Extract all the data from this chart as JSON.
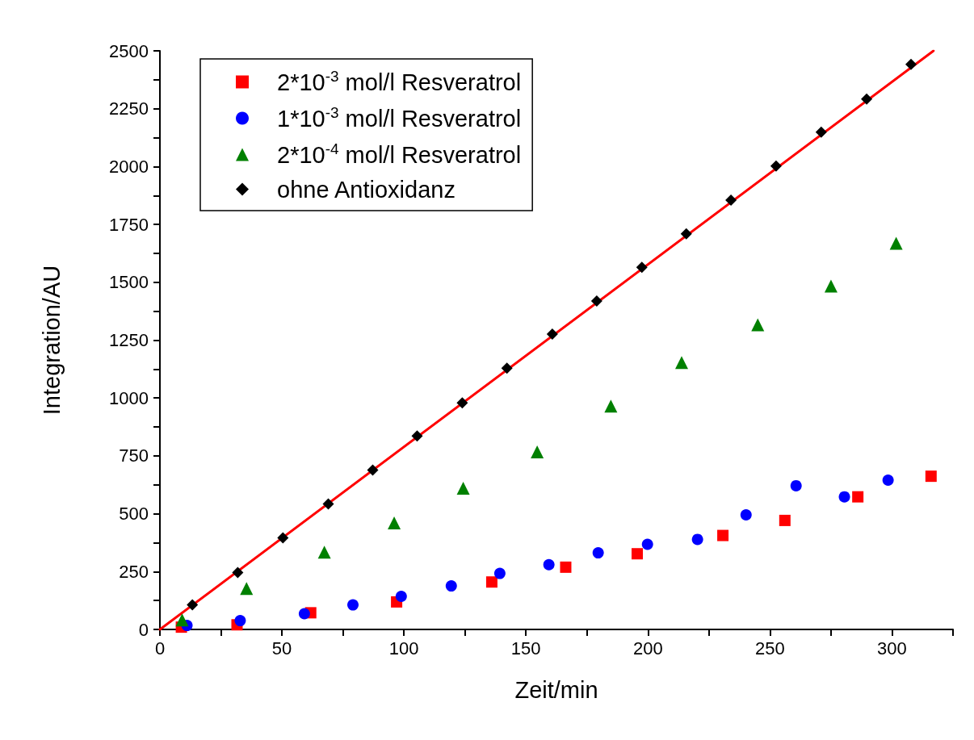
{
  "chart_data": {
    "type": "scatter",
    "xlabel": "Zeit/min",
    "ylabel": "Integration/AU",
    "xlim": [
      0,
      325
    ],
    "ylim": [
      0,
      2500
    ],
    "xticks": [
      0,
      {
        "value": 25,
        "label": null
      },
      50,
      {
        "value": 75,
        "label": null
      },
      100,
      {
        "value": 125,
        "label": null
      },
      150,
      {
        "value": 175,
        "label": null
      },
      200,
      {
        "value": 225,
        "label": null
      },
      250,
      {
        "value": 275,
        "label": null
      },
      300,
      {
        "value": 325,
        "label": null
      }
    ],
    "yticks": [
      0,
      {
        "value": 125,
        "label": null
      },
      250,
      {
        "value": 375,
        "label": null
      },
      500,
      {
        "value": 625,
        "label": null
      },
      750,
      {
        "value": 875,
        "label": null
      },
      1000,
      {
        "value": 1125,
        "label": null
      },
      1250,
      {
        "value": 1375,
        "label": null
      },
      1500,
      {
        "value": 1625,
        "label": null
      },
      1750,
      {
        "value": 1875,
        "label": null
      },
      2000,
      {
        "value": 2125,
        "label": null
      },
      2250,
      {
        "value": 2375,
        "label": null
      },
      2500
    ],
    "grid": false,
    "legend": "top left",
    "series": [
      {
        "name": "2*10$^{-3}$ mol/l Resveratrol",
        "marker": "square",
        "color": "#ff0000",
        "x": [
          8.8,
          31.6,
          61.8,
          97.0,
          136.0,
          166.3,
          195.6,
          230.7,
          256.1,
          286.0,
          316.0
        ],
        "values": [
          10,
          20,
          72,
          119,
          205,
          269,
          327,
          406,
          471,
          573,
          662
        ]
      },
      {
        "name": "1*10$^{-3}$ mol/l Resveratrol",
        "marker": "circle",
        "color": "#0000ff",
        "x": [
          11.1,
          32.9,
          59.2,
          79.1,
          98.9,
          119.4,
          139.3,
          159.4,
          179.6,
          199.8,
          220.3,
          240.2,
          260.7,
          280.5,
          298.4
        ],
        "values": [
          17,
          38,
          68,
          106,
          143,
          188,
          242,
          280,
          331,
          368,
          389,
          495,
          621,
          573,
          645
        ]
      },
      {
        "name": "2*10$^{-4}$ mol/l Resveratrol",
        "marker": "triangle",
        "color": "#008000",
        "x": [
          9.1,
          35.5,
          67.4,
          96.0,
          124.3,
          154.6,
          184.8,
          213.8,
          245.0,
          275.0,
          301.7
        ],
        "values": [
          41,
          177,
          334,
          460,
          610,
          767,
          965,
          1153,
          1316,
          1484,
          1668
        ]
      },
      {
        "type": "line",
        "marker": "none",
        "line_style": "solid",
        "color": "#ff0000",
        "x": [
          0,
          317
        ],
        "values": [
          0,
          2500
        ]
      },
      {
        "name": "ohne Antioxidanz",
        "marker": "diamond",
        "color": "#000000",
        "x": [
          13.3,
          31.9,
          50.4,
          69.0,
          87.2,
          105.4,
          123.9,
          142.2,
          160.8,
          179.0,
          197.5,
          215.7,
          234.0,
          252.5,
          271.0,
          289.6,
          307.8
        ],
        "values": [
          106,
          246,
          396,
          542,
          689,
          836,
          979,
          1129,
          1276,
          1419,
          1565,
          1709,
          1855,
          2002,
          2149,
          2292,
          2442
        ]
      }
    ]
  }
}
